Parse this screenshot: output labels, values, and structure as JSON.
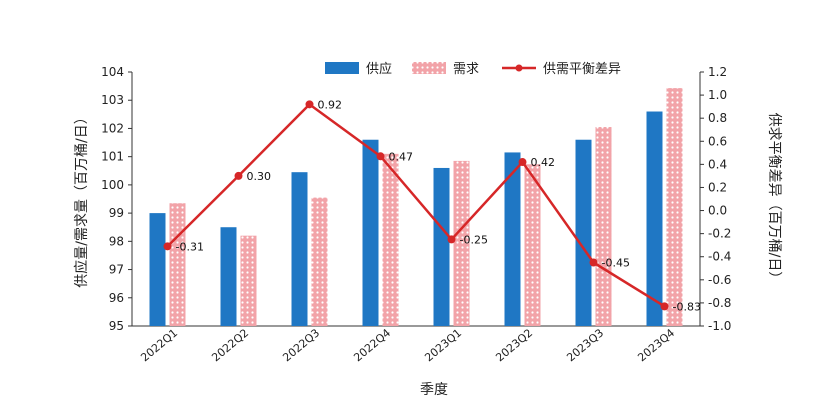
{
  "chart_data": {
    "type": "bar",
    "categories": [
      "2022Q1",
      "2022Q2",
      "2022Q3",
      "2022Q4",
      "2023Q1",
      "2023Q2",
      "2023Q3",
      "2023Q4"
    ],
    "series": [
      {
        "name": "供应",
        "type": "bar",
        "axis": "left",
        "color": "#1f77c4",
        "values": [
          99.0,
          98.5,
          100.45,
          101.6,
          100.6,
          101.15,
          101.6,
          102.6
        ]
      },
      {
        "name": "需求",
        "type": "bar",
        "axis": "left",
        "color": "#f2a3a8",
        "pattern": "dots",
        "values": [
          99.35,
          98.2,
          99.55,
          101.1,
          100.85,
          100.73,
          102.05,
          103.43
        ]
      },
      {
        "name": "供需平衡差异",
        "type": "line",
        "axis": "right",
        "color": "#d62728",
        "values": [
          -0.31,
          0.3,
          0.92,
          0.47,
          -0.25,
          0.42,
          -0.45,
          -0.83
        ],
        "labels": [
          "-0.31",
          "0.30",
          "0.92",
          "0.47",
          "-0.25",
          "0.42",
          "-0.45",
          "-0.83"
        ]
      }
    ],
    "left_axis": {
      "label": "供应量/需求量（百万桶/日）",
      "min": 95,
      "max": 104,
      "step": 1
    },
    "right_axis": {
      "label": "供求平衡差异（百万桶/日）",
      "min": -1.0,
      "max": 1.2,
      "step": 0.2,
      "tick_labels": [
        "-1.0",
        "-0.8",
        "-0.6",
        "-0.4",
        "-0.2",
        "0.0",
        "0.2",
        "0.4",
        "0.6",
        "0.8",
        "1.0",
        "1.2"
      ]
    },
    "xlabel": "季度",
    "legend": {
      "position": "top"
    },
    "grid": false
  }
}
